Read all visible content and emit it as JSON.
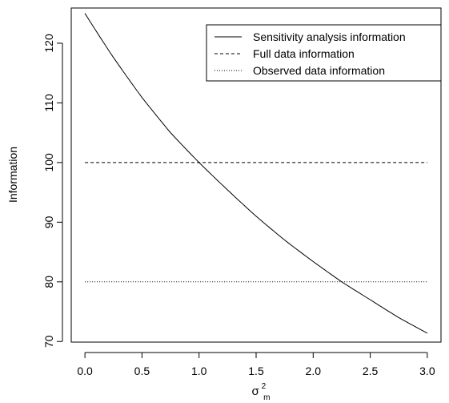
{
  "chart_data": {
    "type": "line",
    "title": "",
    "xlabel": "σ²m",
    "xlabel_parts": {
      "base": "σ",
      "sup": "2",
      "sub": "m"
    },
    "ylabel": "Information",
    "xlim": [
      -0.12,
      3.12
    ],
    "ylim": [
      69.9,
      125.9
    ],
    "xticks": [
      0.0,
      0.5,
      1.0,
      1.5,
      2.0,
      2.5,
      3.0
    ],
    "xtick_labels": [
      "0.0",
      "0.5",
      "1.0",
      "1.5",
      "2.0",
      "2.5",
      "3.0"
    ],
    "yticks": [
      70,
      80,
      90,
      100,
      110,
      120
    ],
    "ytick_labels": [
      "70",
      "80",
      "90",
      "100",
      "110",
      "120"
    ],
    "grid": false,
    "legend_position": "top-right",
    "series": [
      {
        "name": "Sensitivity analysis information",
        "line_style": "solid",
        "x": [
          0.0,
          0.25,
          0.5,
          0.75,
          1.0,
          1.25,
          1.5,
          1.75,
          2.0,
          2.25,
          2.5,
          2.75,
          3.0
        ],
        "y": [
          125.0,
          117.6,
          110.9,
          105.0,
          100.0,
          95.4,
          91.0,
          87.0,
          83.4,
          80.0,
          77.0,
          74.0,
          71.4
        ]
      },
      {
        "name": "Full data information",
        "line_style": "dashed",
        "x": [
          0.0,
          3.0
        ],
        "y": [
          100,
          100
        ]
      },
      {
        "name": "Observed data information",
        "line_style": "dotted",
        "x": [
          0.0,
          3.0
        ],
        "y": [
          80,
          80
        ]
      }
    ]
  }
}
